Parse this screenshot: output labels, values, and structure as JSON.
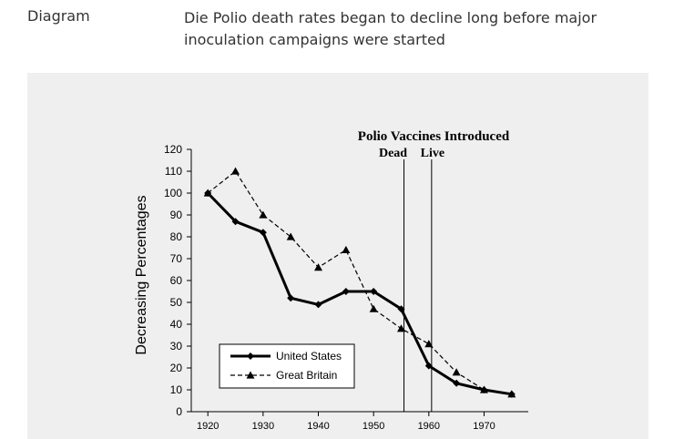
{
  "page": {
    "label": "Diagram",
    "description": "Die Polio death rates began to decline long before major inoculation campaigns were started"
  },
  "chart_data": {
    "type": "line",
    "title": "",
    "xlabel": "",
    "ylabel": "Decreasing Percentages",
    "xlim": [
      1917,
      1978
    ],
    "ylim": [
      0,
      120
    ],
    "x_ticks": [
      1920,
      1930,
      1940,
      1950,
      1960,
      1970
    ],
    "y_ticks": [
      0,
      10,
      20,
      30,
      40,
      50,
      60,
      70,
      80,
      90,
      100,
      110,
      120
    ],
    "series": [
      {
        "name": "United States",
        "style": "solid",
        "marker": "diamond",
        "color": "#000000",
        "x": [
          1920,
          1925,
          1930,
          1935,
          1940,
          1945,
          1950,
          1955,
          1960,
          1965,
          1970,
          1975
        ],
        "y": [
          100,
          87,
          82,
          52,
          49,
          55,
          55,
          47,
          21,
          13,
          10,
          8
        ]
      },
      {
        "name": "Great Britain",
        "style": "dashed",
        "marker": "triangle",
        "color": "#000000",
        "x": [
          1920,
          1925,
          1930,
          1935,
          1940,
          1945,
          1950,
          1955,
          1960,
          1965,
          1970,
          1975
        ],
        "y": [
          100,
          110,
          90,
          80,
          66,
          74,
          47,
          38,
          31,
          18,
          10,
          8
        ]
      }
    ],
    "annotations": {
      "heading": "Polio Vaccines Introduced",
      "lines": [
        {
          "x": 1955.5,
          "label": "Dead"
        },
        {
          "x": 1960.5,
          "label": "Live"
        }
      ]
    },
    "legend_position": "bottom-left",
    "grid": false
  }
}
